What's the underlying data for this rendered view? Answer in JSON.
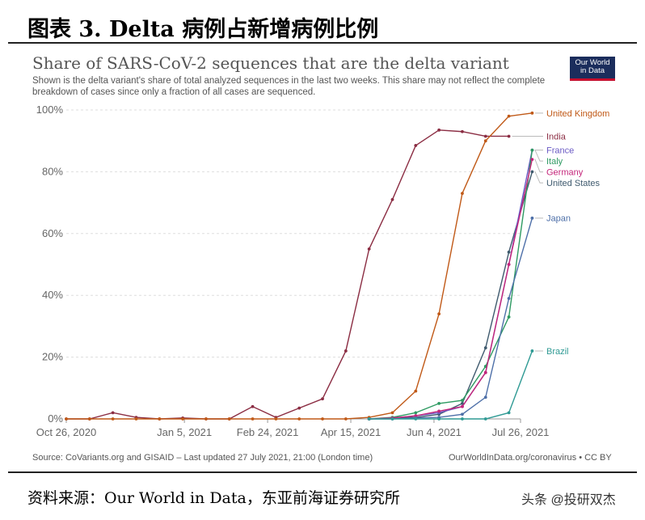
{
  "figure": {
    "title": "图表 3.  Delta 病例占新增病例比例",
    "source_note": "资料来源：Our World in Data，东亚前海证券研究所",
    "watermark": "头条 @投研双杰"
  },
  "logo": {
    "line1": "Our World",
    "line2": "in Data"
  },
  "chart_data": {
    "type": "line",
    "title": "Share of SARS-CoV-2 sequences that are the delta variant",
    "subtitle": "Shown is the delta variant's share of total analyzed sequences in the last two weeks. This share may not reflect the complete breakdown of cases since only a fraction of all cases are sequenced.",
    "ylim": [
      0,
      100
    ],
    "y_ticks": [
      "0%",
      "20%",
      "40%",
      "60%",
      "80%",
      "100%"
    ],
    "x_tick_labels": [
      "Oct 26, 2020",
      "Jan 5, 2021",
      "Feb 24, 2021",
      "Apr 15, 2021",
      "Jun 4, 2021",
      "Jul 26, 2021"
    ],
    "x_tick_days": [
      0,
      71,
      121,
      171,
      221,
      273
    ],
    "x_range_days": [
      0,
      273
    ],
    "grid": true,
    "source": "Source: CoVariants.org and GISAID – Last updated 27 July 2021, 21:00 (London time)",
    "credit": "OurWorldInData.org/coronavirus • CC BY",
    "series": [
      {
        "name": "India",
        "color": "#8b2d43",
        "x": [
          0,
          14,
          28,
          42,
          56,
          70,
          84,
          98,
          112,
          126,
          140,
          154,
          168,
          182,
          196,
          210,
          224,
          238,
          252,
          266
        ],
        "y": [
          0,
          0,
          2,
          0.5,
          0,
          0.3,
          0,
          0,
          4,
          0.5,
          3.5,
          6.5,
          22,
          55,
          71,
          88.5,
          93.5,
          93,
          91.5,
          91.5
        ]
      },
      {
        "name": "United Kingdom",
        "color": "#c05917",
        "x": [
          0,
          14,
          28,
          42,
          56,
          70,
          84,
          98,
          112,
          126,
          140,
          154,
          168,
          182,
          196,
          210,
          224,
          238,
          252,
          266,
          280
        ],
        "y": [
          0,
          0,
          0,
          0,
          0,
          0,
          0,
          0,
          0,
          0,
          0,
          0,
          0,
          0.5,
          2,
          9,
          34,
          73,
          90,
          98,
          99
        ]
      },
      {
        "name": "United States",
        "color": "#3f5a6e",
        "x": [
          182,
          196,
          210,
          224,
          238,
          252,
          266,
          280
        ],
        "y": [
          0,
          0.3,
          0.5,
          1.5,
          5,
          23,
          54,
          80
        ]
      },
      {
        "name": "France",
        "color": "#6a5ac4",
        "x": [
          182,
          196,
          210,
          224,
          238,
          252,
          266,
          280
        ],
        "y": [
          0,
          0.3,
          1,
          2,
          4,
          15,
          50,
          87
        ]
      },
      {
        "name": "Italy",
        "color": "#2e9a62",
        "x": [
          182,
          196,
          210,
          224,
          238,
          252,
          266,
          280
        ],
        "y": [
          0,
          0.5,
          2,
          5,
          6,
          17,
          33,
          87
        ]
      },
      {
        "name": "Germany",
        "color": "#c4257a",
        "x": [
          182,
          196,
          210,
          224,
          238,
          252,
          266,
          280
        ],
        "y": [
          0,
          0.3,
          1,
          2.5,
          4,
          15,
          50,
          84
        ]
      },
      {
        "name": "Japan",
        "color": "#4d6fa8",
        "x": [
          182,
          196,
          210,
          224,
          238,
          252,
          266,
          280
        ],
        "y": [
          0,
          0,
          0.3,
          0.5,
          1.5,
          7,
          39,
          65
        ]
      },
      {
        "name": "Brazil",
        "color": "#2f9a94",
        "x": [
          182,
          196,
          210,
          224,
          238,
          252,
          266,
          280
        ],
        "y": [
          0,
          0,
          0,
          0,
          0,
          0,
          2,
          22
        ]
      }
    ]
  }
}
